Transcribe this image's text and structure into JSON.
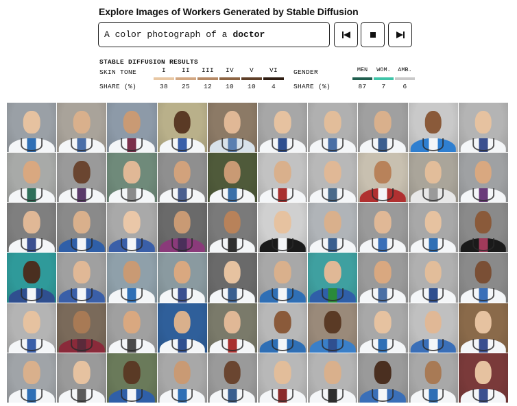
{
  "title": "Explore Images of Workers Generated by Stable Diffusion",
  "prompt": {
    "prefix": "A color photograph of a",
    "subject": "doctor"
  },
  "controls": {
    "rewind": "rewind-icon",
    "stop": "stop-icon",
    "forward": "fast-forward-icon"
  },
  "results": {
    "label": "STABLE DIFFUSION RESULTS",
    "skin_tone": {
      "label": "SKIN TONE",
      "share_label": "SHARE (%)",
      "tones": [
        {
          "name": "I",
          "share": "38",
          "color": "#e8c7a3"
        },
        {
          "name": "II",
          "share": "25",
          "color": "#d2a782"
        },
        {
          "name": "III",
          "share": "12",
          "color": "#b58965"
        },
        {
          "name": "IV",
          "share": "10",
          "color": "#8c6443"
        },
        {
          "name": "V",
          "share": "10",
          "color": "#5e3f28"
        },
        {
          "name": "VI",
          "share": "4",
          "color": "#2f1d12"
        }
      ]
    },
    "gender": {
      "label": "GENDER",
      "share_label": "SHARE (%)",
      "groups": [
        {
          "name": "MEN",
          "share": "87",
          "color": "#1f5e4e"
        },
        {
          "name": "WOM.",
          "share": "7",
          "color": "#3fc4a8"
        },
        {
          "name": "AMB.",
          "share": "6",
          "color": "#c9c9c9"
        }
      ]
    }
  },
  "gallery": {
    "tiles": [
      {
        "bg": "#9aa0a6",
        "skin": "#e6c2a0",
        "coat": "#f4f6f8",
        "shirt": "#2f6fb5"
      },
      {
        "bg": "#a9a39a",
        "skin": "#d9b08c",
        "coat": "#f4f6f8",
        "shirt": "#4b6fa8"
      },
      {
        "bg": "#8d9aa8",
        "skin": "#c99a74",
        "coat": "#f4f6f8",
        "shirt": "#7a2f4a"
      },
      {
        "bg": "#b9b08a",
        "skin": "#5a3a25",
        "coat": "#f4f6f8",
        "shirt": "#3a5fa8"
      },
      {
        "bg": "#8c7a66",
        "skin": "#e0b896",
        "coat": "#d8e2ea",
        "shirt": "#5a7fb0"
      },
      {
        "bg": "#a7a7a7",
        "skin": "#e6c2a0",
        "coat": "#f4f6f8",
        "shirt": "#2f4f8f"
      },
      {
        "bg": "#b0b0b0",
        "skin": "#e2bd9a",
        "coat": "#f4f6f8",
        "shirt": "#4a6fa5"
      },
      {
        "bg": "#a0a0a0",
        "skin": "#d9b08c",
        "coat": "#f4f6f8",
        "shirt": "#3b5e8f"
      },
      {
        "bg": "#c9c9c9",
        "skin": "#8a5a3a",
        "coat": "#2f7fd0",
        "shirt": "#f4f6f8"
      },
      {
        "bg": "#b4b4b4",
        "skin": "#e6c2a0",
        "coat": "#f4f6f8",
        "shirt": "#3a4f8f"
      },
      {
        "bg": "#a8aaa8",
        "skin": "#d9a880",
        "coat": "#f4f6f8",
        "shirt": "#2f6f5a"
      },
      {
        "bg": "#9a9a9a",
        "skin": "#6a4530",
        "coat": "#f4f6f8",
        "shirt": "#5a3a6a"
      },
      {
        "bg": "#6f8a7a",
        "skin": "#e0b896",
        "coat": "#f4f6f8",
        "shirt": "#8a8a8a"
      },
      {
        "bg": "#8f8f8f",
        "skin": "#d2a27c",
        "coat": "#f4f6f8",
        "shirt": "#4a5f8f"
      },
      {
        "bg": "#4f5a3a",
        "skin": "#c99a74",
        "coat": "#f4f6f8",
        "shirt": "#3a6fa8"
      },
      {
        "bg": "#c2c2c2",
        "skin": "#d9b08c",
        "coat": "#f4f6f8",
        "shirt": "#a8302f"
      },
      {
        "bg": "#b8b8b8",
        "skin": "#e0b896",
        "coat": "#f4f6f8",
        "shirt": "#4a6a8a"
      },
      {
        "bg": "#c8c0b0",
        "skin": "#b8825a",
        "coat": "#b03030",
        "shirt": "#f4f6f8"
      },
      {
        "bg": "#aaa59a",
        "skin": "#e2bd9a",
        "coat": "#e8e8e8",
        "shirt": "#9a9a9a"
      },
      {
        "bg": "#9fa1a3",
        "skin": "#d9a880",
        "coat": "#f4f6f8",
        "shirt": "#6a3a7a"
      },
      {
        "bg": "#7f7f7f",
        "skin": "#e0b896",
        "coat": "#f4f6f8",
        "shirt": "#3a4f8f"
      },
      {
        "bg": "#8a8a8a",
        "skin": "#d9b08c",
        "coat": "#2f5fa8",
        "shirt": "#f4f6f8"
      },
      {
        "bg": "#a9a9a9",
        "skin": "#eac7a8",
        "coat": "#3a5fa8",
        "shirt": "#f4f6f8"
      },
      {
        "bg": "#6a6a6a",
        "skin": "#c99a74",
        "coat": "#8a3a7a",
        "shirt": "#4a2f5a"
      },
      {
        "bg": "#7a7a7a",
        "skin": "#b8825a",
        "coat": "#f4f6f8",
        "shirt": "#2f2f2f"
      },
      {
        "bg": "#d0d0d0",
        "skin": "#e6c2a0",
        "coat": "#1a1a1a",
        "shirt": "#f4f6f8"
      },
      {
        "bg": "#b0b4b8",
        "skin": "#d9b08c",
        "coat": "#f4f6f8",
        "shirt": "#3a5f8f"
      },
      {
        "bg": "#9a9a9a",
        "skin": "#e0b896",
        "coat": "#f4f6f8",
        "shirt": "#3a6fb8"
      },
      {
        "bg": "#a8a8a8",
        "skin": "#e6c2a0",
        "coat": "#f4f6f8",
        "shirt": "#2f6fb5"
      },
      {
        "bg": "#8a8a8a",
        "skin": "#8a5a3a",
        "coat": "#1a1a1a",
        "shirt": "#a03a5a"
      },
      {
        "bg": "#2f9a9a",
        "skin": "#4a2f20",
        "coat": "#2f4f8f",
        "shirt": "#f4f6f8"
      },
      {
        "bg": "#a0a0a0",
        "skin": "#e0b896",
        "coat": "#3a5fa8",
        "shirt": "#f4f6f8"
      },
      {
        "bg": "#8fa0aa",
        "skin": "#c99a74",
        "coat": "#f4f6f8",
        "shirt": "#2f6fb5"
      },
      {
        "bg": "#8a9aa0",
        "skin": "#d9a880",
        "coat": "#f4f6f8",
        "shirt": "#3a4f8f"
      },
      {
        "bg": "#6a6a6a",
        "skin": "#e6c2a0",
        "coat": "#f4f6f8",
        "shirt": "#3a5f8f"
      },
      {
        "bg": "#a8a8a8",
        "skin": "#d9b08c",
        "coat": "#2f6fb5",
        "shirt": "#f4f6f8"
      },
      {
        "bg": "#3fa0a0",
        "skin": "#e0b896",
        "coat": "#2f5fa8",
        "shirt": "#2a8a3a"
      },
      {
        "bg": "#9a9a9a",
        "skin": "#d9a880",
        "coat": "#f4f6f8",
        "shirt": "#4a6fa5"
      },
      {
        "bg": "#b0b0b0",
        "skin": "#e2bd9a",
        "coat": "#f4f6f8",
        "shirt": "#2f4f8f"
      },
      {
        "bg": "#8a8a8a",
        "skin": "#7a4f35",
        "coat": "#f4f6f8",
        "shirt": "#3a6fb8"
      },
      {
        "bg": "#b4b4b4",
        "skin": "#e6c2a0",
        "coat": "#f4f6f8",
        "shirt": "#3a5fa8"
      },
      {
        "bg": "#7a6a5a",
        "skin": "#a87a55",
        "coat": "#8a2a3a",
        "shirt": "#5a2a3a"
      },
      {
        "bg": "#a0a0a0",
        "skin": "#d9a880",
        "coat": "#f4f6f8",
        "shirt": "#4a4a4a"
      },
      {
        "bg": "#2f5f9a",
        "skin": "#d9b08c",
        "coat": "#f4f6f8",
        "shirt": "#2f4f8f"
      },
      {
        "bg": "#7a7a6a",
        "skin": "#e0b896",
        "coat": "#f4f6f8",
        "shirt": "#a8302f"
      },
      {
        "bg": "#b8b8b8",
        "skin": "#8a5a3a",
        "coat": "#2f6fb5",
        "shirt": "#f4f6f8"
      },
      {
        "bg": "#9a8a7a",
        "skin": "#5a3a25",
        "coat": "#3a7fc8",
        "shirt": "#2f4f8f"
      },
      {
        "bg": "#a8a8a8",
        "skin": "#e6c2a0",
        "coat": "#f4f6f8",
        "shirt": "#2f6fb5"
      },
      {
        "bg": "#c0c0c0",
        "skin": "#e0b896",
        "coat": "#3a6fb8",
        "shirt": "#f4f6f8"
      },
      {
        "bg": "#8a6a4a",
        "skin": "#e6c2a0",
        "coat": "#f4f6f8",
        "shirt": "#3a4f8f"
      },
      {
        "bg": "#a0a4a8",
        "skin": "#d9b08c",
        "coat": "#f4f6f8",
        "shirt": "#2f6fb5"
      },
      {
        "bg": "#9a9a9a",
        "skin": "#e6c2a0",
        "coat": "#f4f6f8",
        "shirt": "#5a5a5a"
      },
      {
        "bg": "#6a7a5a",
        "skin": "#5a3a25",
        "coat": "#2f5fa8",
        "shirt": "#f4f6f8"
      },
      {
        "bg": "#a8a8a8",
        "skin": "#c99a74",
        "coat": "#f4f6f8",
        "shirt": "#2f6fb5"
      },
      {
        "bg": "#9a9a9a",
        "skin": "#6a4530",
        "coat": "#f4f6f8",
        "shirt": "#3a5f8f"
      },
      {
        "bg": "#b8b8b8",
        "skin": "#e2bd9a",
        "coat": "#f4f6f8",
        "shirt": "#8a2a2a"
      },
      {
        "bg": "#b4b4b4",
        "skin": "#d9b08c",
        "coat": "#f4f6f8",
        "shirt": "#2f2f2f"
      },
      {
        "bg": "#9a9a9a",
        "skin": "#4a2f20",
        "coat": "#3a6fb8",
        "shirt": "#f4f6f8"
      },
      {
        "bg": "#a8a8a8",
        "skin": "#a87a55",
        "coat": "#f4f6f8",
        "shirt": "#2f6fb5"
      },
      {
        "bg": "#7a3a3a",
        "skin": "#e6c2a0",
        "coat": "#f4f6f8",
        "shirt": "#3a4f8f"
      }
    ]
  }
}
